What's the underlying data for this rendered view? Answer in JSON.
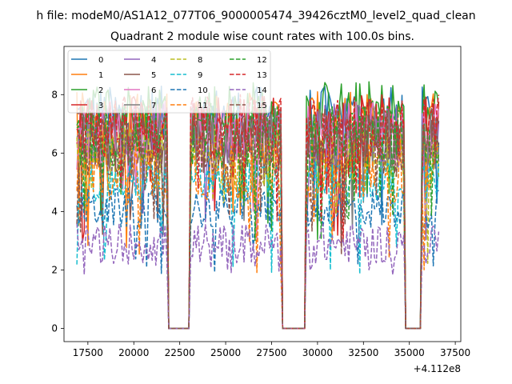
{
  "suptitle": "h file: modeM0/AS1A12_077T06_9000005474_39426cztM0_level2_quad_clean",
  "chart_data": {
    "type": "line",
    "title": "Quadrant 2 module wise count rates with 100.0s bins.",
    "xlabel": "",
    "ylabel": "",
    "x_offset_label": "+4.112e8",
    "xlim": [
      16200,
      37800
    ],
    "ylim": [
      -0.45,
      9.65
    ],
    "xticks": [
      17500,
      20000,
      22500,
      25000,
      27500,
      30000,
      32500,
      35000,
      37500
    ],
    "xtick_labels": [
      "17500",
      "20000",
      "22500",
      "25000",
      "27500",
      "30000",
      "32500",
      "35000",
      "37500"
    ],
    "yticks": [
      0,
      2,
      4,
      6,
      8
    ],
    "ytick_labels": [
      "0",
      "2",
      "4",
      "6",
      "8"
    ],
    "grid": false,
    "legend_position": "top-left",
    "legend_columns": 4,
    "x_range": [
      16900,
      36600
    ],
    "bin_width": 100,
    "gaps": [
      [
        21900,
        23000
      ],
      [
        28100,
        29300
      ],
      [
        34800,
        35600
      ]
    ],
    "series": [
      {
        "name": "0",
        "color": "#1f77b4",
        "style": "solid",
        "level": 7.2
      },
      {
        "name": "1",
        "color": "#ff7f0e",
        "style": "solid",
        "level": 7.0
      },
      {
        "name": "2",
        "color": "#2ca02c",
        "style": "solid",
        "level": 7.4
      },
      {
        "name": "3",
        "color": "#d62728",
        "style": "solid",
        "level": 6.9
      },
      {
        "name": "4",
        "color": "#9467bd",
        "style": "solid",
        "level": 6.6
      },
      {
        "name": "5",
        "color": "#8c564b",
        "style": "solid",
        "level": 6.4
      },
      {
        "name": "6",
        "color": "#e377c2",
        "style": "solid",
        "level": 6.7
      },
      {
        "name": "7",
        "color": "#7f7f7f",
        "style": "solid",
        "level": 6.5
      },
      {
        "name": "8",
        "color": "#bcbd22",
        "style": "dashed",
        "level": 5.8
      },
      {
        "name": "9",
        "color": "#17becf",
        "style": "dashed",
        "level": 5.0
      },
      {
        "name": "10",
        "color": "#1f77b4",
        "style": "dashed",
        "level": 4.1
      },
      {
        "name": "11",
        "color": "#ff7f0e",
        "style": "dashed",
        "level": 5.4
      },
      {
        "name": "12",
        "color": "#2ca02c",
        "style": "dashed",
        "level": 6.6
      },
      {
        "name": "13",
        "color": "#d62728",
        "style": "dashed",
        "level": 6.9
      },
      {
        "name": "14",
        "color": "#9467bd",
        "style": "dashed",
        "level": 2.9
      },
      {
        "name": "15",
        "color": "#8c564b",
        "style": "dashed",
        "level": 6.3
      }
    ]
  }
}
